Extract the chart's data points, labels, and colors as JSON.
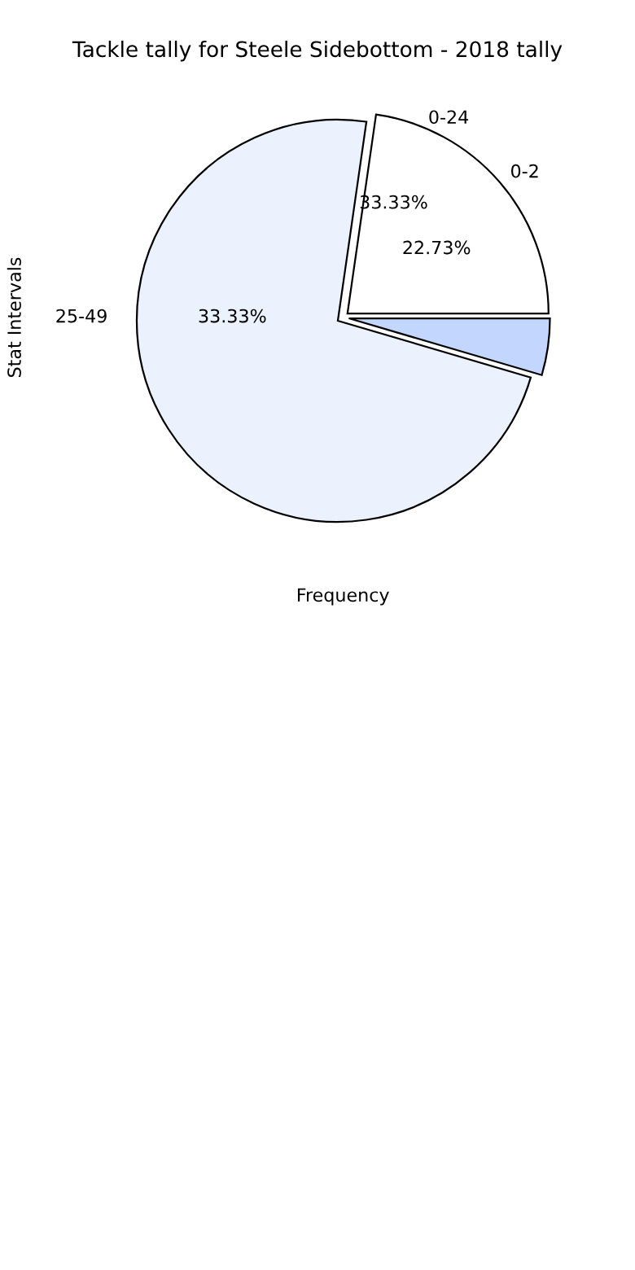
{
  "chart_data": {
    "type": "pie",
    "title": "Tackle tally for Steele Sidebottom - 2018 tally",
    "xlabel": "Frequency",
    "ylabel": "Stat Intervals",
    "categories": [
      "0-2",
      null,
      null
    ],
    "values": [
      22.73,
      72.73,
      4.55
    ],
    "value_labels": [
      "22.73%",
      null,
      null
    ],
    "colors": [
      "#ffffff",
      "#ebf1fd",
      "#c3d7fe"
    ],
    "annotations": [
      "0-24",
      "33.33%",
      "25-49",
      "33.33%"
    ]
  }
}
